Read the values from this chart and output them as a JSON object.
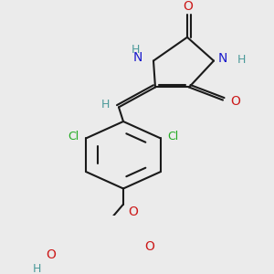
{
  "background_color": "#ebebeb",
  "bond_color": "#1a1a1a",
  "bond_width": 1.5,
  "figsize": [
    3.0,
    3.0
  ],
  "dpi": 100,
  "colors": {
    "N": "#1a1acc",
    "O": "#cc1a1a",
    "Cl": "#22aa22",
    "H": "#4a9999",
    "C": "#1a1a1a"
  }
}
